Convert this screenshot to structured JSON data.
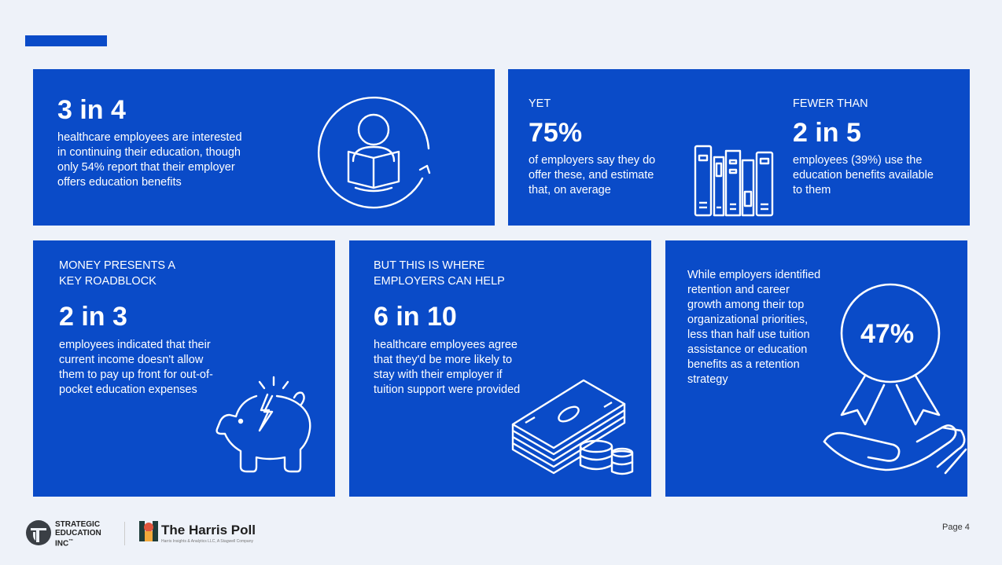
{
  "card1": {
    "stat": "3 in 4",
    "body": "healthcare employees are interested in continuing their education, though only 54% report that their employer offers education benefits"
  },
  "card2": {
    "left_label": "YET",
    "left_stat": "75%",
    "left_body": "of employers say they do offer these, and estimate that, on average",
    "right_label": "FEWER THAN",
    "right_stat": "2 in 5",
    "right_body": "employees (39%) use the education benefits available to them"
  },
  "card3": {
    "label": "MONEY PRESENTS A KEY ROADBLOCK",
    "stat": "2 in 3",
    "body": "employees indicated that their current income doesn't allow them to pay up front for out-of-pocket education expenses"
  },
  "card4": {
    "label": "BUT THIS IS WHERE EMPLOYERS CAN HELP",
    "stat": "6 in 10",
    "body": "healthcare employees agree that they'd be more likely to stay with their employer if tuition support were provided"
  },
  "card5": {
    "body": "While employers identified retention and career growth among their top organizational priorities, less than half use tuition assistance or education benefits as a retention strategy",
    "stat": "47%"
  },
  "footer": {
    "logo1_line1": "STRATEGIC",
    "logo1_line2": "EDUCATION",
    "logo1_line3": "INC",
    "logo1_tm": "™",
    "logo2_name": "The Harris Poll",
    "logo2_tagline": "Harris Insights & Analytics LLC, A Stagwell Company",
    "page": "Page 4"
  },
  "colors": {
    "card_blue": "#0A4BC8",
    "background": "#EEF2F9"
  }
}
